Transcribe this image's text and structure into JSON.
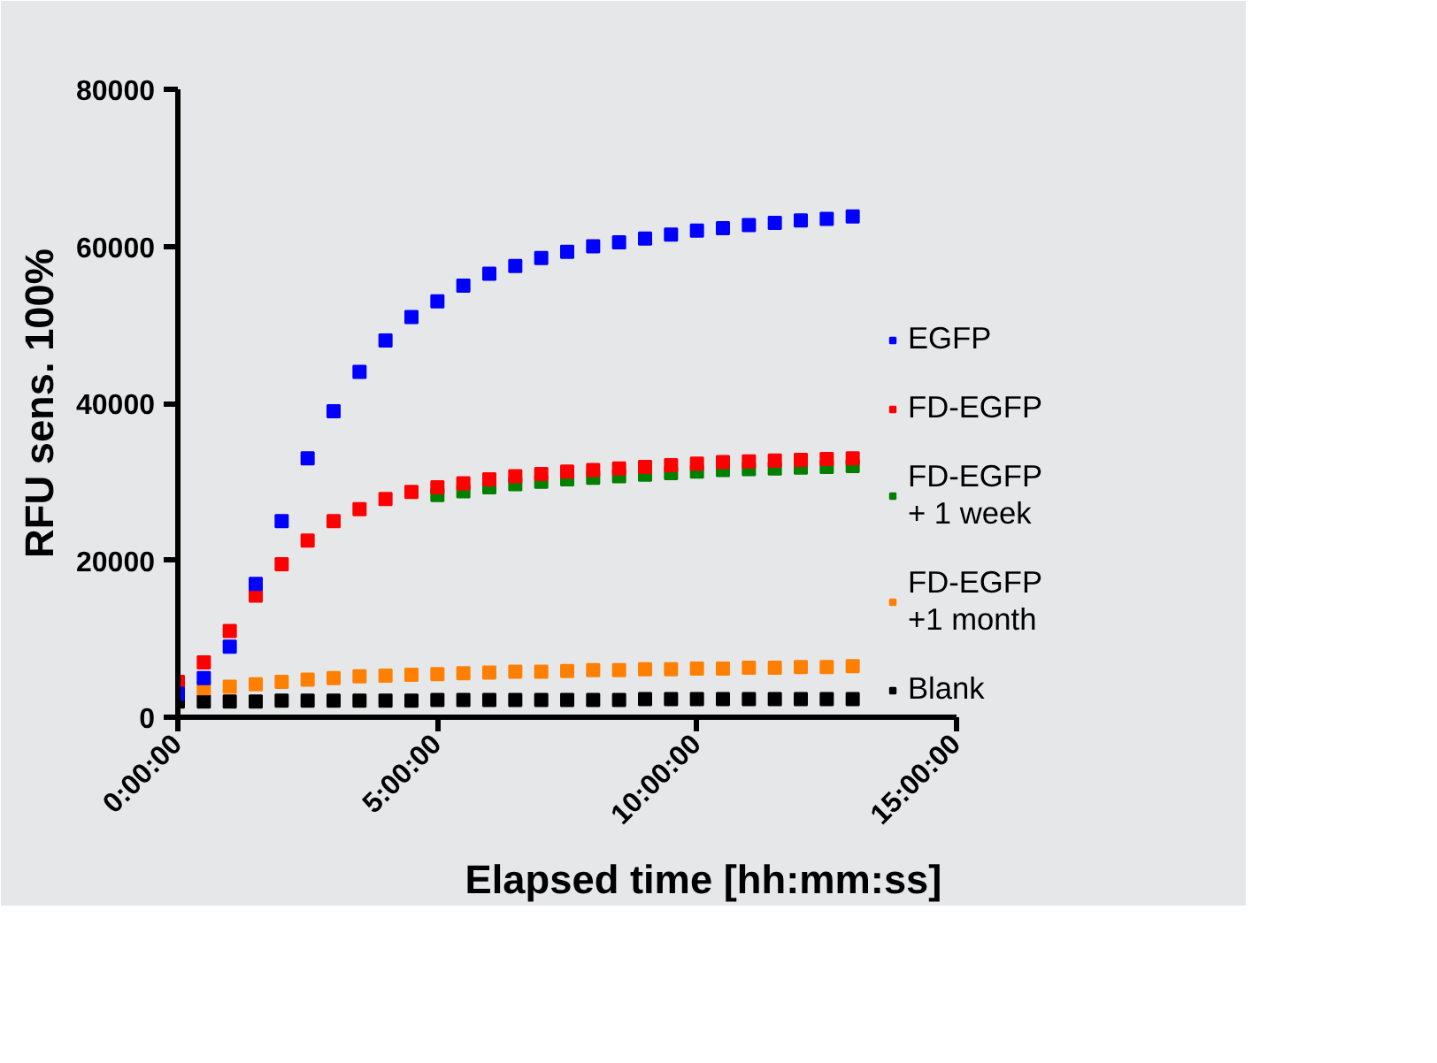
{
  "chart_data": {
    "type": "scatter",
    "xlabel": "Elapsed time [hh:mm:ss]",
    "ylabel": "RFU sens. 100%",
    "xlim": [
      0,
      15
    ],
    "xticks": [
      {
        "value": 0,
        "label": "0:00:00"
      },
      {
        "value": 5,
        "label": "5:00:00"
      },
      {
        "value": 10,
        "label": "10:00:00"
      },
      {
        "value": 15,
        "label": "15:00:00"
      }
    ],
    "ylim": [
      0,
      80000
    ],
    "yticks": [
      0,
      20000,
      40000,
      60000,
      80000
    ],
    "x": [
      0,
      0.5,
      1,
      1.5,
      2,
      2.5,
      3,
      3.5,
      4,
      4.5,
      5,
      5.5,
      6,
      6.5,
      7,
      7.5,
      8,
      8.5,
      9,
      9.5,
      10,
      10.5,
      11,
      11.5,
      12,
      12.5,
      13
    ],
    "series": [
      {
        "name": "EGFP",
        "color": "#0000ff",
        "values": [
          3000,
          5000,
          9000,
          17000,
          25000,
          33000,
          39000,
          44000,
          48000,
          51000,
          53000,
          55000,
          56500,
          57500,
          58500,
          59300,
          60000,
          60500,
          61000,
          61500,
          62000,
          62300,
          62700,
          63000,
          63300,
          63500,
          63800
        ]
      },
      {
        "name": "FD-EGFP",
        "color": "#ff0000",
        "values": [
          4500,
          7000,
          11000,
          15500,
          19500,
          22500,
          25000,
          26500,
          27800,
          28700,
          29300,
          29800,
          30300,
          30700,
          31000,
          31300,
          31500,
          31700,
          31900,
          32100,
          32300,
          32500,
          32600,
          32700,
          32800,
          32900,
          33000
        ]
      },
      {
        "name": "FD-EGFP\n+ 1 week",
        "color": "#008000",
        "values": [
          null,
          null,
          null,
          null,
          null,
          null,
          null,
          null,
          null,
          null,
          28300,
          28800,
          29300,
          29700,
          30000,
          30300,
          30500,
          30700,
          30900,
          31100,
          31300,
          31500,
          31600,
          31700,
          31800,
          31900,
          32000
        ]
      },
      {
        "name": "FD-EGFP\n+1 month",
        "color": "#ff8000",
        "values": [
          null,
          3700,
          3900,
          4200,
          4500,
          4800,
          5000,
          5200,
          5300,
          5400,
          5500,
          5600,
          5700,
          5800,
          5800,
          5900,
          6000,
          6000,
          6100,
          6100,
          6200,
          6200,
          6300,
          6300,
          6400,
          6400,
          6500
        ]
      },
      {
        "name": "Blank",
        "color": "#000000",
        "values": [
          2000,
          2000,
          2000,
          2000,
          2100,
          2100,
          2100,
          2100,
          2100,
          2100,
          2200,
          2200,
          2200,
          2200,
          2200,
          2200,
          2200,
          2200,
          2300,
          2300,
          2300,
          2300,
          2300,
          2300,
          2300,
          2300,
          2300
        ]
      }
    ],
    "marker": "square",
    "legend": "right"
  }
}
